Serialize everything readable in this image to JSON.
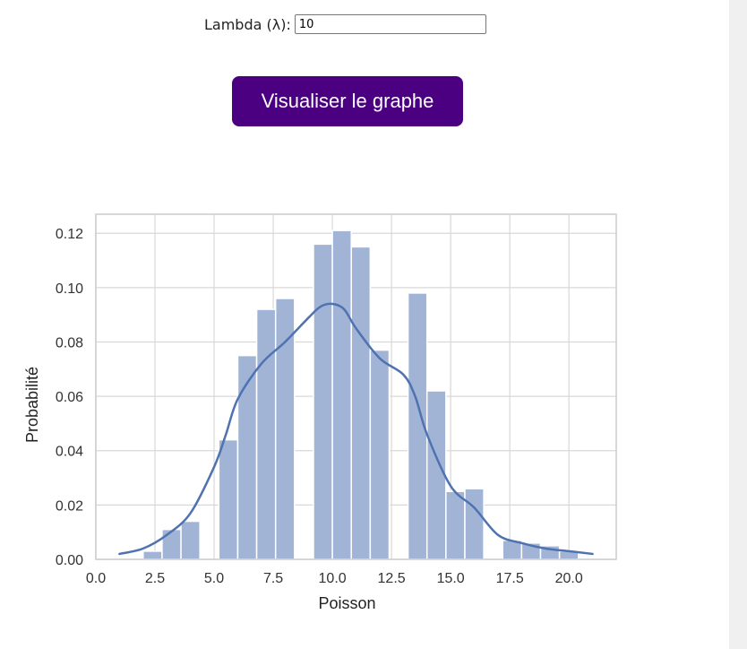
{
  "form": {
    "lambda_label": "Lambda (λ):",
    "lambda_value": "10",
    "button_label": "Visualiser le graphe"
  },
  "colors": {
    "button_bg": "#4b0082",
    "bar_fill": "#a1b4d6",
    "kde_line": "#4f72b0",
    "grid": "#d8d8d8",
    "frame": "#cccccc"
  },
  "chart_data": {
    "type": "bar",
    "title": "",
    "xlabel": "Poisson",
    "ylabel": "Probabilité",
    "xlim": [
      0,
      22
    ],
    "ylim": [
      0,
      0.127
    ],
    "xticks": [
      0.0,
      2.5,
      5.0,
      7.5,
      10.0,
      12.5,
      15.0,
      17.5,
      20.0
    ],
    "xtick_labels": [
      "0.0",
      "2.5",
      "5.0",
      "7.5",
      "10.0",
      "12.5",
      "15.0",
      "17.5",
      "20.0"
    ],
    "yticks": [
      0.0,
      0.02,
      0.04,
      0.06,
      0.08,
      0.1,
      0.12
    ],
    "ytick_labels": [
      "0.00",
      "0.02",
      "0.04",
      "0.06",
      "0.08",
      "0.10",
      "0.12"
    ],
    "grid": true,
    "bars": [
      {
        "x0": 2.0,
        "x1": 2.8,
        "value": 0.003
      },
      {
        "x0": 2.8,
        "x1": 3.6,
        "value": 0.011
      },
      {
        "x0": 3.6,
        "x1": 4.4,
        "value": 0.014
      },
      {
        "x0": 5.2,
        "x1": 6.0,
        "value": 0.044
      },
      {
        "x0": 6.0,
        "x1": 6.8,
        "value": 0.075
      },
      {
        "x0": 6.8,
        "x1": 7.6,
        "value": 0.092
      },
      {
        "x0": 7.6,
        "x1": 8.4,
        "value": 0.096
      },
      {
        "x0": 9.2,
        "x1": 10.0,
        "value": 0.116
      },
      {
        "x0": 10.0,
        "x1": 10.8,
        "value": 0.121
      },
      {
        "x0": 10.8,
        "x1": 11.6,
        "value": 0.115
      },
      {
        "x0": 11.6,
        "x1": 12.4,
        "value": 0.077
      },
      {
        "x0": 13.2,
        "x1": 14.0,
        "value": 0.098
      },
      {
        "x0": 14.0,
        "x1": 14.8,
        "value": 0.062
      },
      {
        "x0": 14.8,
        "x1": 15.6,
        "value": 0.025
      },
      {
        "x0": 15.6,
        "x1": 16.4,
        "value": 0.026
      },
      {
        "x0": 17.2,
        "x1": 18.0,
        "value": 0.007
      },
      {
        "x0": 18.0,
        "x1": 18.8,
        "value": 0.006
      },
      {
        "x0": 18.8,
        "x1": 19.6,
        "value": 0.005
      },
      {
        "x0": 19.6,
        "x1": 20.4,
        "value": 0.003
      }
    ],
    "kde": {
      "x": [
        1,
        2,
        3,
        4,
        5,
        5.5,
        6,
        7,
        8,
        9,
        9.5,
        10,
        10.5,
        11,
        12,
        13,
        13.5,
        14,
        15,
        16,
        17,
        18,
        19,
        20,
        21
      ],
      "y": [
        0.002,
        0.004,
        0.009,
        0.017,
        0.034,
        0.046,
        0.059,
        0.072,
        0.08,
        0.089,
        0.093,
        0.094,
        0.092,
        0.085,
        0.074,
        0.068,
        0.06,
        0.046,
        0.027,
        0.019,
        0.009,
        0.006,
        0.004,
        0.003,
        0.002
      ]
    }
  }
}
